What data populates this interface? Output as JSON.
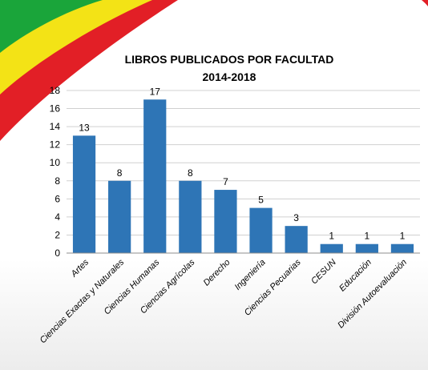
{
  "colors": {
    "bar": "#2e75b6",
    "grid": "#d0d0d0",
    "flag_green": "#1aa53a",
    "flag_yellow": "#f3e316",
    "flag_red": "#e21f26"
  },
  "chart_data": {
    "type": "bar",
    "title": "LIBROS PUBLICADOS POR FACULTAD",
    "subtitle": "2014-2018",
    "xlabel": "",
    "ylabel": "",
    "ylim": [
      0,
      18
    ],
    "yticks": [
      0,
      2,
      4,
      6,
      8,
      10,
      12,
      14,
      16,
      18
    ],
    "grid": true,
    "legend": "none",
    "categories": [
      "Artes",
      "Ciencias Exactas y Naturales",
      "Ciencias Humanas",
      "Ciencias Agrícolas",
      "Derecho",
      "Ingeniería",
      "Ciencias Pecuarias",
      "CESUN",
      "Educación",
      "División Autoevaluación"
    ],
    "values": [
      13,
      8,
      17,
      8,
      7,
      5,
      3,
      1,
      1,
      1
    ]
  }
}
